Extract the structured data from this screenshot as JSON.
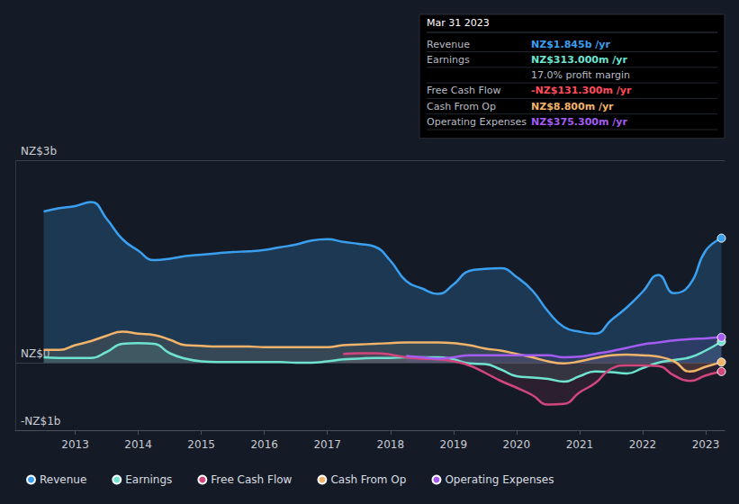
{
  "chart_data": {
    "type": "area",
    "x": [
      2012.5,
      2012.75,
      2013,
      2013.25,
      2013.5,
      2013.75,
      2014,
      2014.25,
      2014.5,
      2014.75,
      2015,
      2015.25,
      2015.5,
      2015.75,
      2016,
      2016.25,
      2016.5,
      2016.75,
      2017,
      2017.25,
      2017.5,
      2017.75,
      2018,
      2018.25,
      2018.5,
      2018.75,
      2019,
      2019.25,
      2019.5,
      2019.75,
      2020,
      2020.25,
      2020.5,
      2020.75,
      2021,
      2021.25,
      2021.5,
      2021.75,
      2022,
      2022.25,
      2022.5,
      2022.75,
      2023,
      2023.25
    ],
    "series": [
      {
        "name": "Revenue",
        "color": "#3b9ff0",
        "values": [
          2.24,
          2.29,
          2.32,
          2.38,
          2.13,
          1.83,
          1.66,
          1.52,
          1.54,
          1.58,
          1.6,
          1.62,
          1.64,
          1.65,
          1.67,
          1.71,
          1.75,
          1.81,
          1.83,
          1.79,
          1.76,
          1.72,
          1.51,
          1.21,
          1.1,
          1.02,
          1.16,
          1.36,
          1.39,
          1.4,
          1.27,
          1.07,
          0.76,
          0.53,
          0.46,
          0.43,
          0.63,
          0.82,
          1.05,
          1.3,
          1.03,
          1.16,
          1.66,
          1.845
        ]
      },
      {
        "name": "Earnings",
        "color": "#6fe3cf",
        "values": [
          0.08,
          0.07,
          0.07,
          0.07,
          0.16,
          0.28,
          0.29,
          0.28,
          0.14,
          0.06,
          0.02,
          0.01,
          0.01,
          0.01,
          0.01,
          0.01,
          0,
          0,
          0.02,
          0.05,
          0.06,
          0.07,
          0.07,
          0.08,
          0.08,
          0.08,
          0.05,
          -0.01,
          -0.02,
          -0.1,
          -0.2,
          -0.22,
          -0.24,
          -0.28,
          -0.2,
          -0.13,
          -0.14,
          -0.16,
          -0.08,
          0,
          0.04,
          0.08,
          0.18,
          0.313
        ]
      },
      {
        "name": "Free Cash Flow",
        "color": "#d2467e",
        "values": [
          null,
          null,
          null,
          null,
          null,
          null,
          null,
          null,
          null,
          null,
          null,
          null,
          null,
          null,
          null,
          null,
          null,
          null,
          null,
          0.13,
          0.14,
          0.14,
          0.12,
          0.08,
          0.06,
          0.05,
          0.02,
          -0.04,
          -0.15,
          -0.27,
          -0.37,
          -0.48,
          -0.62,
          -0.61,
          -0.44,
          -0.3,
          -0.09,
          -0.04,
          -0.04,
          -0.05,
          -0.19,
          -0.27,
          -0.19,
          -0.1313
        ]
      },
      {
        "name": "Cash From Op",
        "color": "#f2b46a",
        "values": [
          0.19,
          0.19,
          0.26,
          0.32,
          0.4,
          0.46,
          0.43,
          0.41,
          0.34,
          0.26,
          0.25,
          0.24,
          0.24,
          0.24,
          0.23,
          0.23,
          0.23,
          0.23,
          0.23,
          0.26,
          0.27,
          0.28,
          0.29,
          0.3,
          0.3,
          0.3,
          0.29,
          0.26,
          0.21,
          0.18,
          0.13,
          0.08,
          0.02,
          -0.01,
          0.02,
          0.07,
          0.11,
          0.12,
          0.11,
          0.09,
          0.02,
          -0.13,
          -0.06,
          0.0088
        ]
      },
      {
        "name": "Operating Expenses",
        "color": "#a45cf2",
        "values": [
          null,
          null,
          null,
          null,
          null,
          null,
          null,
          null,
          null,
          null,
          null,
          null,
          null,
          null,
          null,
          null,
          null,
          null,
          null,
          null,
          null,
          null,
          null,
          0.1,
          0.08,
          0.06,
          0.08,
          0.11,
          0.11,
          0.11,
          0.11,
          0.11,
          0.11,
          0.08,
          0.09,
          0.13,
          0.17,
          0.22,
          0.27,
          0.3,
          0.33,
          0.35,
          0.36,
          0.3753
        ]
      }
    ],
    "xlim": [
      2012.05,
      2023.3
    ],
    "xticks": [
      2013,
      2014,
      2015,
      2016,
      2017,
      2018,
      2019,
      2020,
      2021,
      2022,
      2023
    ],
    "ylim": [
      -1,
      3
    ],
    "yticks": [
      {
        "value": -1,
        "label": "-NZ$1b"
      },
      {
        "value": 0,
        "label": "NZ$0"
      },
      {
        "value": 3,
        "label": "NZ$3b"
      }
    ],
    "grid": true,
    "legend": "bottom",
    "annotation": {
      "title": "Mar 31 2023",
      "rows": [
        {
          "label": "Revenue",
          "value": "NZ$1.845b /yr"
        },
        {
          "label": "Earnings",
          "value": "NZ$313.000m /yr"
        },
        {
          "value": "17.0% profit margin"
        },
        {
          "label": "Free Cash Flow",
          "value": "-NZ$131.300m /yr"
        },
        {
          "label": "Cash From Op",
          "value": "NZ$8.800m /yr"
        },
        {
          "label": "Operating Expenses",
          "value": "NZ$375.300m /yr"
        }
      ]
    }
  }
}
